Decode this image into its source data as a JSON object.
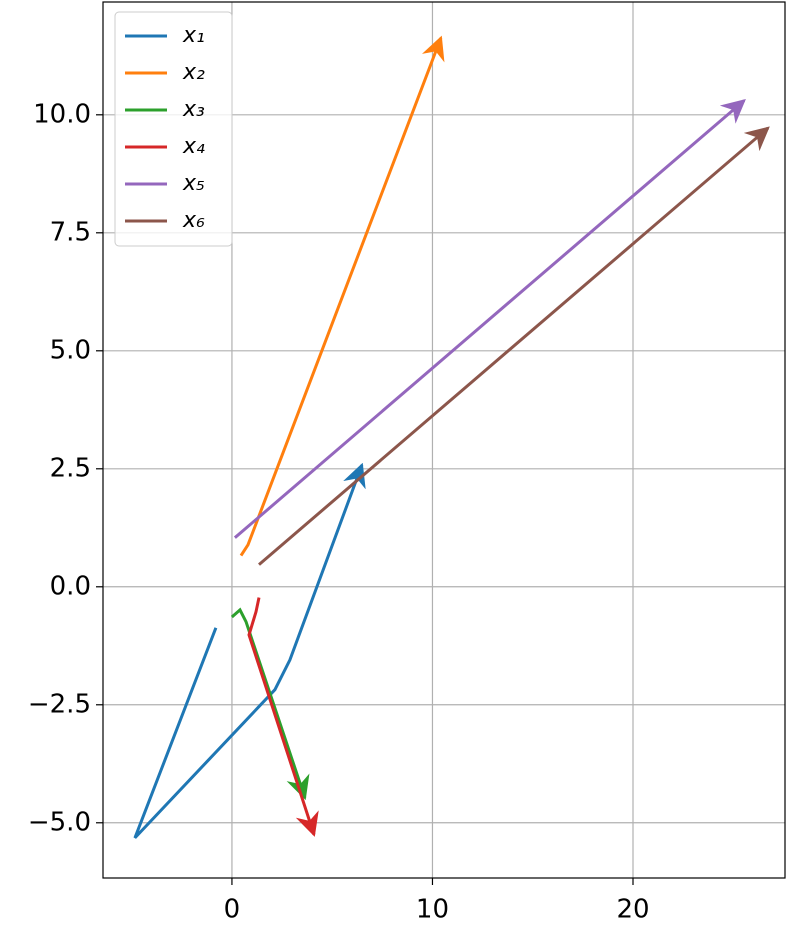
{
  "chart_data": {
    "type": "line",
    "series": [
      {
        "name": "x₁",
        "color": "#1f77b4",
        "x": [
          -0.8,
          -4.84,
          2.14,
          2.89,
          6.48
        ],
        "values": [
          -0.87,
          -5.32,
          -2.18,
          -1.55,
          2.58
        ]
      },
      {
        "name": "x₂",
        "color": "#ff7f0e",
        "x": [
          0.45,
          0.8,
          10.42
        ],
        "values": [
          0.66,
          0.89,
          11.63
        ]
      },
      {
        "name": "x₃",
        "color": "#2ca02c",
        "x": [
          0,
          0.4,
          0.7,
          3.64
        ],
        "values": [
          -0.64,
          -0.49,
          -0.74,
          -4.47
        ]
      },
      {
        "name": "x₄",
        "color": "#d62728",
        "x": [
          1.35,
          1.2,
          0.85,
          4.09
        ],
        "values": [
          -0.23,
          -0.53,
          -1.02,
          -5.25
        ]
      },
      {
        "name": "x₅",
        "color": "#9467bd",
        "x": [
          0.15,
          25.54
        ],
        "values": [
          1.04,
          10.3
        ]
      },
      {
        "name": "x₆",
        "color": "#8c564b",
        "x": [
          1.35,
          26.73
        ],
        "values": [
          0.47,
          9.72
        ]
      }
    ],
    "xlim": [
      -6.43,
      27.58
    ],
    "ylim": [
      -6.17,
      12.39
    ],
    "xticks": [
      0,
      10,
      20
    ],
    "yticks": [
      {
        "value": -5,
        "label": "−5.0"
      },
      {
        "value": -2.5,
        "label": "−2.5"
      },
      {
        "value": 0,
        "label": "0.0"
      },
      2.5,
      {
        "value": 5,
        "label": "5.0"
      },
      7.5,
      {
        "value": 10,
        "label": "10.0"
      }
    ],
    "grid": true,
    "legend": "upper left"
  }
}
